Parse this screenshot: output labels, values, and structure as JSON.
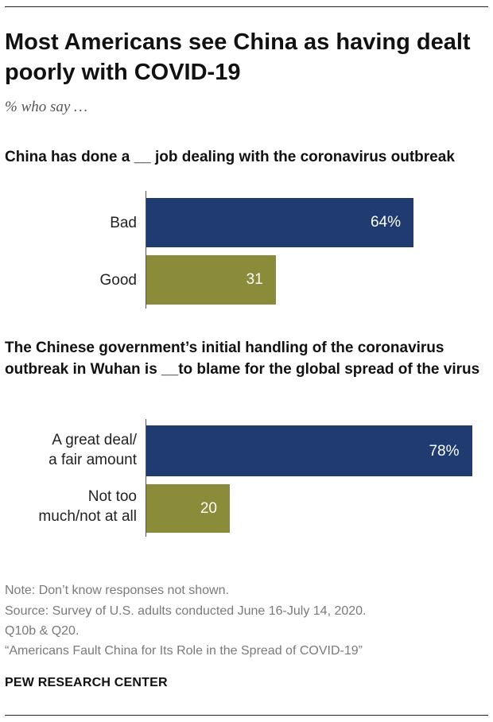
{
  "title": "Most Americans see China as having dealt poorly with COVID-19",
  "subtitle": "% who say …",
  "colors": {
    "primary": "#1f3b70",
    "secondary": "#8a8c3a"
  },
  "chart_data": [
    {
      "type": "bar",
      "orientation": "horizontal",
      "title": "China has done a __ job dealing with the coronavirus outbreak",
      "categories": [
        "Bad",
        "Good"
      ],
      "values": [
        64,
        31
      ],
      "value_labels": [
        "64%",
        "31"
      ],
      "xlim": [
        0,
        100
      ]
    },
    {
      "type": "bar",
      "orientation": "horizontal",
      "title": "The Chinese government’s initial handling of the coronavirus outbreak in Wuhan is __to blame for the global spread of the virus",
      "categories": [
        "A great deal/ a fair amount",
        "Not too much/not at all"
      ],
      "category_lines": [
        [
          "A great deal/",
          "a fair amount"
        ],
        [
          "Not too",
          "much/not at all"
        ]
      ],
      "values": [
        78,
        20
      ],
      "value_labels": [
        "78%",
        "20"
      ],
      "xlim": [
        0,
        100
      ]
    }
  ],
  "notes": {
    "note": "Note: Don’t know responses not shown.",
    "source_line1": "Source: Survey of U.S. adults conducted June 16-July 14, 2020.",
    "source_line2": "Q10b & Q20.",
    "report": "“Americans Fault China for Its Role in the Spread of COVID-19”"
  },
  "brand": "PEW RESEARCH CENTER"
}
